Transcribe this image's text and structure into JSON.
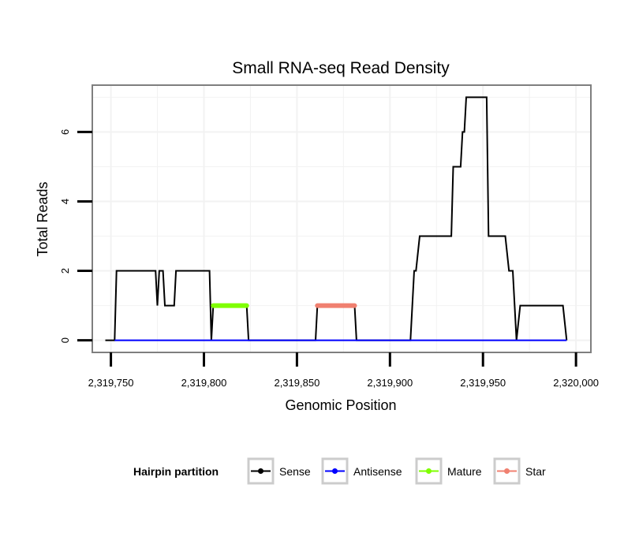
{
  "chart_data": {
    "type": "line",
    "title": "Small RNA-seq Read Density",
    "xlabel": "Genomic Position",
    "ylabel": "Total Reads",
    "xlim": [
      2319740,
      2320008
    ],
    "ylim": [
      -0.35,
      7.35
    ],
    "x_ticks": [
      2319750,
      2319800,
      2319850,
      2319900,
      2319950,
      2320000
    ],
    "x_tick_labels": [
      "2,319,750",
      "2,319,800",
      "2,319,850",
      "2,319,900",
      "2,319,950",
      "2,320,000"
    ],
    "y_ticks": [
      0,
      2,
      4,
      6
    ],
    "y_tick_labels": [
      "0",
      "2",
      "4",
      "6"
    ],
    "grid": true,
    "legend_position": "bottom",
    "legend_title": "Hairpin partition",
    "series": [
      {
        "name": "Sense",
        "color": "#000000",
        "points": [
          [
            2319747,
            0
          ],
          [
            2319752,
            0
          ],
          [
            2319753,
            2
          ],
          [
            2319774,
            2
          ],
          [
            2319775,
            1
          ],
          [
            2319776,
            2
          ],
          [
            2319778,
            2
          ],
          [
            2319779,
            1
          ],
          [
            2319784,
            1
          ],
          [
            2319785,
            2
          ],
          [
            2319803,
            2
          ],
          [
            2319804,
            0
          ],
          [
            2319805,
            1
          ],
          [
            2319823,
            1
          ],
          [
            2319824,
            0
          ],
          [
            2319860,
            0
          ],
          [
            2319861,
            1
          ],
          [
            2319881,
            1
          ],
          [
            2319882,
            0
          ],
          [
            2319911,
            0
          ],
          [
            2319913,
            2
          ],
          [
            2319914,
            2
          ],
          [
            2319916,
            3
          ],
          [
            2319933,
            3
          ],
          [
            2319934,
            5
          ],
          [
            2319938,
            5
          ],
          [
            2319939,
            6
          ],
          [
            2319940,
            6
          ],
          [
            2319941,
            7
          ],
          [
            2319952,
            7
          ],
          [
            2319953,
            3
          ],
          [
            2319962,
            3
          ],
          [
            2319964,
            2
          ],
          [
            2319966,
            2
          ],
          [
            2319968,
            0
          ],
          [
            2319970,
            1
          ],
          [
            2319993,
            1
          ],
          [
            2319995,
            0
          ]
        ]
      },
      {
        "name": "Antisense",
        "color": "#0000ff",
        "points": [
          [
            2319752,
            0
          ],
          [
            2319995,
            0
          ]
        ]
      },
      {
        "name": "Mature",
        "color": "#7fff00",
        "points": [
          [
            2319805,
            1
          ],
          [
            2319823,
            1
          ]
        ]
      },
      {
        "name": "Star",
        "color": "#f08070",
        "points": [
          [
            2319861,
            1
          ],
          [
            2319881,
            1
          ]
        ]
      }
    ]
  }
}
